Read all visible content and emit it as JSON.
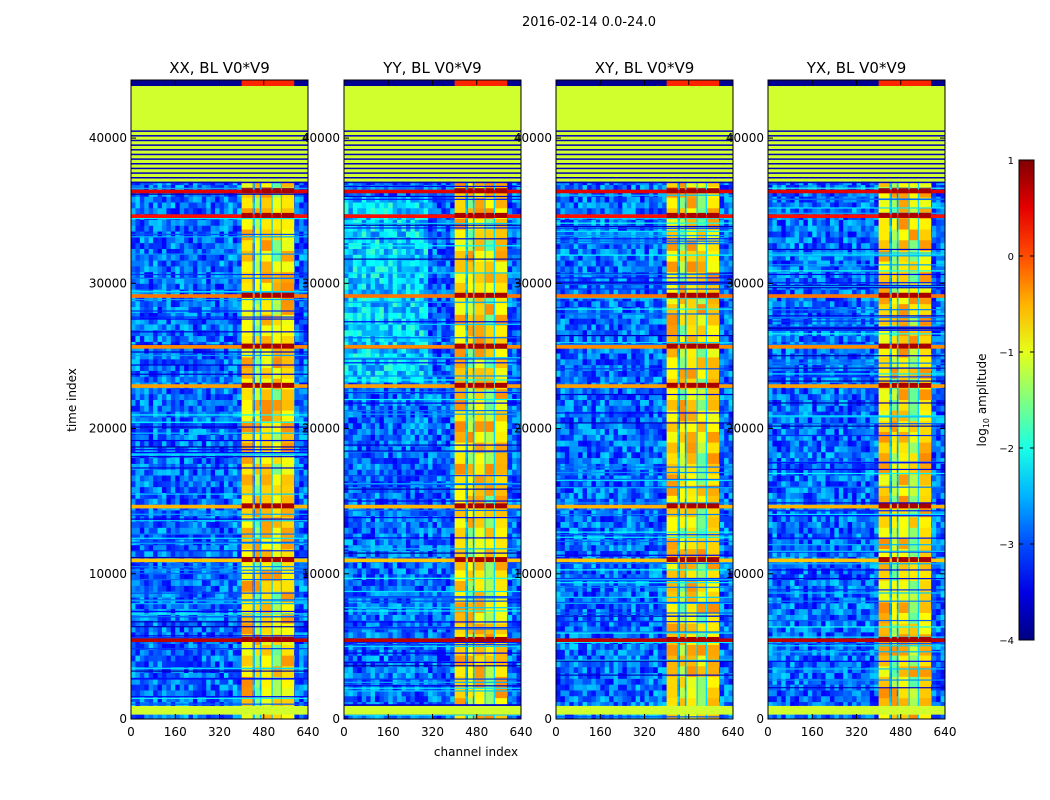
{
  "chart_data": {
    "type": "heatmap",
    "suptitle": "2016-02-14 0.0-24.0",
    "xlabel": "channel index",
    "ylabel": "time index",
    "x_range": [
      0,
      640
    ],
    "y_range": [
      0,
      44000
    ],
    "x_ticks": [
      "0",
      "160",
      "320",
      "480",
      "640"
    ],
    "y_ticks": [
      "0",
      "10000",
      "20000",
      "30000",
      "40000"
    ],
    "colorbar": {
      "label": "log",
      "label_sub": "10",
      "label_suffix": " amplitude",
      "range": [
        -4,
        1
      ],
      "ticks": [
        "−4",
        "−3",
        "−2",
        "−1",
        "0",
        "1"
      ],
      "colormap": "jet"
    },
    "panels": [
      {
        "title": "XX, BL V0*V9"
      },
      {
        "title": "YY, BL V0*V9"
      },
      {
        "title": "XY, BL V0*V9"
      },
      {
        "title": "YX, BL V0*V9"
      }
    ],
    "flagged_time_range": [
      37000,
      44000
    ],
    "flagged_value": -1.1,
    "band_channel_ranges": [
      [
        400,
        440
      ],
      [
        448,
        466
      ],
      [
        472,
        508
      ],
      [
        512,
        542
      ],
      [
        546,
        590
      ]
    ],
    "gap_channels": [
      444,
      470,
      510,
      544
    ],
    "broadband_rfi_rows": [
      {
        "time": 5300,
        "value": 0.7
      },
      {
        "time": 22800,
        "value": -0.4
      },
      {
        "time": 29000,
        "value": -0.2
      },
      {
        "time": 34500,
        "value": 0.3
      },
      {
        "time": 36200,
        "value": 0.5
      },
      {
        "time": 25500,
        "value": -0.3
      },
      {
        "time": 14500,
        "value": -0.5
      },
      {
        "time": 10800,
        "value": -0.6
      }
    ]
  }
}
